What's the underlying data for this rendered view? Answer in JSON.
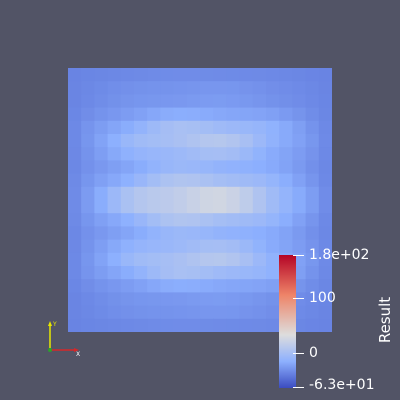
{
  "viewer": {
    "background_color": "#525466"
  },
  "field": {
    "rows": 20,
    "cols": 20,
    "colormap": [
      "#3b4cc0",
      "#dddddd",
      "#b40426"
    ],
    "range": [
      -63,
      180
    ]
  },
  "colorbar": {
    "title": "Result",
    "labels": {
      "max": "1.8e+02",
      "mid": "100",
      "zero": "0",
      "min": "-6.3e+01"
    },
    "label_values": [
      180,
      100,
      0,
      -63
    ]
  },
  "axes_triad": {
    "x_color": "#d62728",
    "y_color": "#e8e800",
    "z_color": "#2ca02c"
  }
}
